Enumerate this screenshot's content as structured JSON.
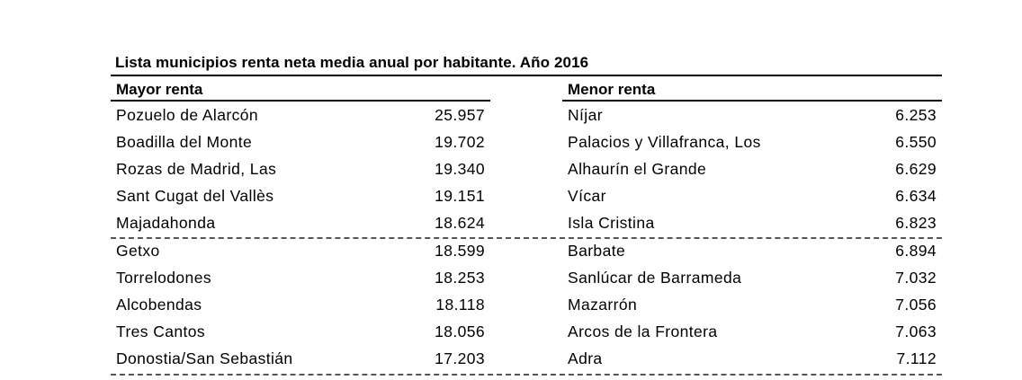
{
  "title": "Lista municipios renta neta media anual por habitante. Año 2016",
  "left": {
    "header": "Mayor renta",
    "rows": [
      {
        "name": "Pozuelo de Alarcón",
        "value": "25.957"
      },
      {
        "name": "Boadilla del Monte",
        "value": "19.702"
      },
      {
        "name": "Rozas de Madrid, Las",
        "value": "19.340"
      },
      {
        "name": "Sant Cugat del Vallès",
        "value": "19.151"
      },
      {
        "name": "Majadahonda",
        "value": "18.624"
      },
      {
        "name": "Getxo",
        "value": "18.599"
      },
      {
        "name": "Torrelodones",
        "value": "18.253"
      },
      {
        "name": "Alcobendas",
        "value": "18.118"
      },
      {
        "name": "Tres Cantos",
        "value": "18.056"
      },
      {
        "name": "Donostia/San Sebastián",
        "value": "17.203"
      }
    ]
  },
  "right": {
    "header": "Menor renta",
    "rows": [
      {
        "name": "Níjar",
        "value": "6.253"
      },
      {
        "name": "Palacios y Villafranca, Los",
        "value": "6.550"
      },
      {
        "name": "Alhaurín el Grande",
        "value": "6.629"
      },
      {
        "name": "Vícar",
        "value": "6.634"
      },
      {
        "name": "Isla Cristina",
        "value": "6.823"
      },
      {
        "name": "Barbate",
        "value": "6.894"
      },
      {
        "name": "Sanlúcar de Barrameda",
        "value": "7.032"
      },
      {
        "name": "Mazarrón",
        "value": "7.056"
      },
      {
        "name": "Arcos de la Frontera",
        "value": "7.063"
      },
      {
        "name": "Adra",
        "value": "7.112"
      }
    ]
  }
}
